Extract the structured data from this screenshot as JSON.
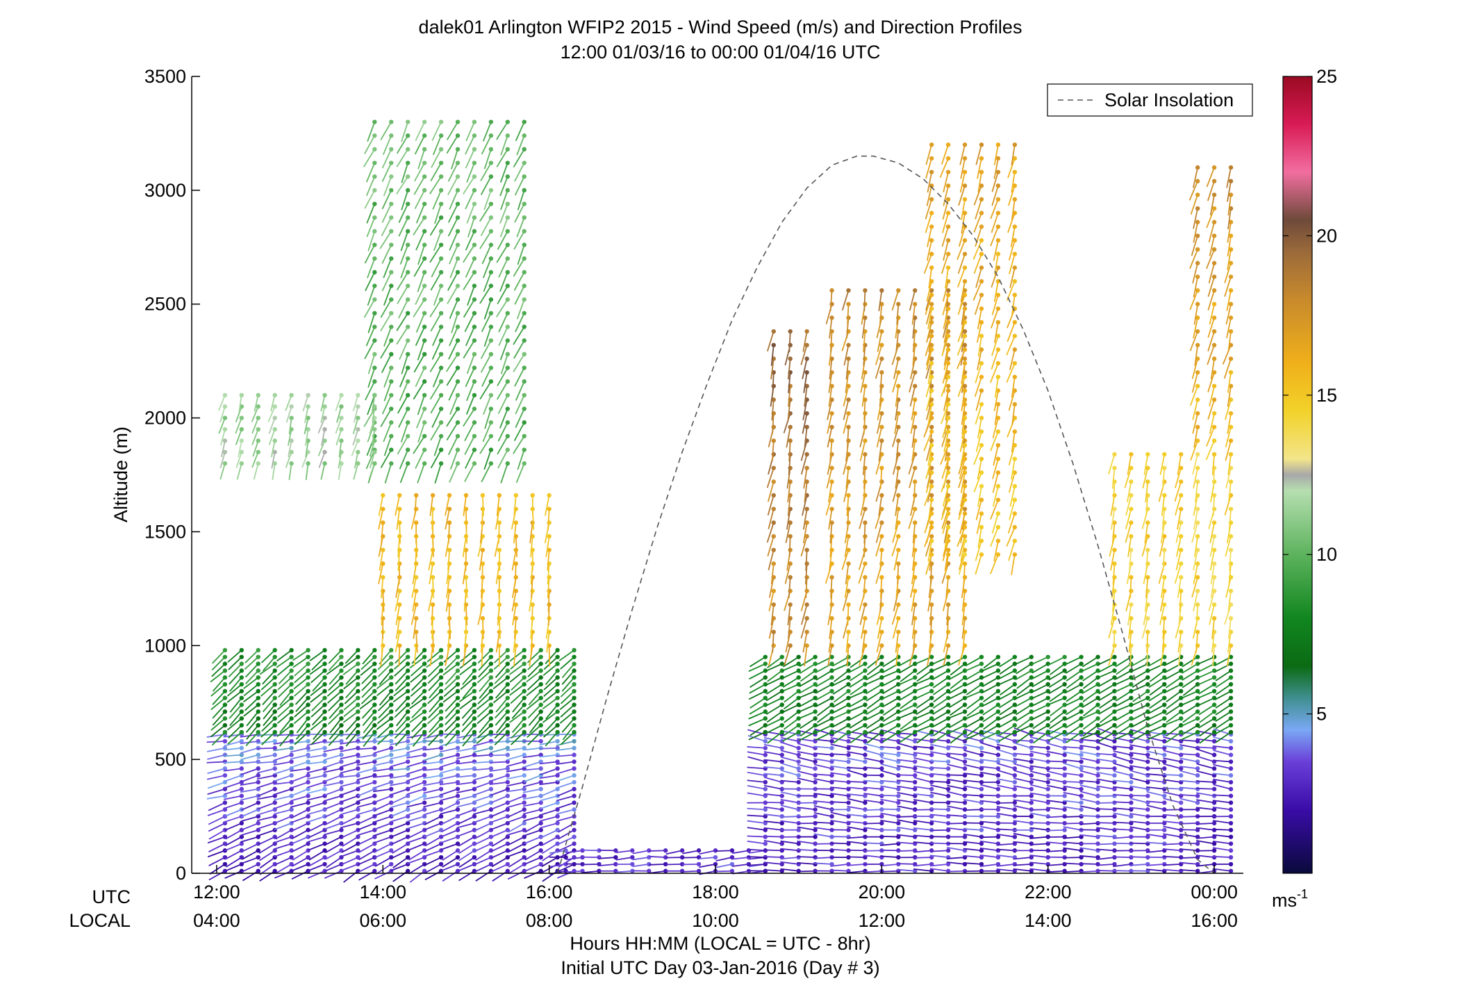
{
  "chart_data": {
    "type": "scatter",
    "title": "dalek01 Arlington WFIP2 2015 - Wind Speed (m/s) and Direction Profiles",
    "subtitle": "12:00 01/03/16 to 00:00 01/04/16  UTC",
    "ylabel": "Altitude (m)",
    "xlabel": "Hours HH:MM  (LOCAL = UTC - 8hr)",
    "xlabel2": "Initial UTC Day 03-Jan-2016 (Day # 3)",
    "axis_row_labels": [
      "UTC",
      "LOCAL"
    ],
    "xlim": [
      11.7,
      24.35
    ],
    "ylim": [
      0,
      3500
    ],
    "x_ticks": [
      12,
      14,
      16,
      18,
      20,
      22,
      24
    ],
    "x_tick_labels_utc": [
      "12:00",
      "14:00",
      "16:00",
      "18:00",
      "20:00",
      "22:00",
      "00:00"
    ],
    "x_tick_labels_local": [
      "04:00",
      "06:00",
      "08:00",
      "10:00",
      "12:00",
      "14:00",
      "16:00"
    ],
    "y_ticks": [
      0,
      500,
      1000,
      1500,
      2000,
      2500,
      3000,
      3500
    ],
    "y_tick_labels": [
      "0",
      "500",
      "1000",
      "1500",
      "2000",
      "2500",
      "3000",
      "3500"
    ],
    "legend": {
      "position": "top-right",
      "entries": [
        {
          "name": "Solar Insolation",
          "style": "dashed",
          "color": "#555555"
        }
      ]
    },
    "colorbar": {
      "range": [
        0,
        25
      ],
      "ticks": [
        5,
        10,
        15,
        20,
        25
      ],
      "tick_labels": [
        "5",
        "10",
        "15",
        "20",
        "25"
      ],
      "unit_label": "ms",
      "unit_superscript": "-1",
      "stops": [
        {
          "value": 0,
          "color": "#0a0a3c"
        },
        {
          "value": 2,
          "color": "#3a0ca8"
        },
        {
          "value": 3.5,
          "color": "#6a3fd8"
        },
        {
          "value": 4.5,
          "color": "#7aa8f5"
        },
        {
          "value": 5.5,
          "color": "#3f8f8f"
        },
        {
          "value": 6.5,
          "color": "#0b6b14"
        },
        {
          "value": 8,
          "color": "#11861f"
        },
        {
          "value": 10,
          "color": "#5db35d"
        },
        {
          "value": 12,
          "color": "#b6deb0"
        },
        {
          "value": 12.5,
          "color": "#a8a8a8"
        },
        {
          "value": 13,
          "color": "#f3e58a"
        },
        {
          "value": 14.5,
          "color": "#f2d22a"
        },
        {
          "value": 16,
          "color": "#f0b01a"
        },
        {
          "value": 18,
          "color": "#c88a2c"
        },
        {
          "value": 19.5,
          "color": "#9b6a3a"
        },
        {
          "value": 20.5,
          "color": "#6e4a3a"
        },
        {
          "value": 22,
          "color": "#f26ea0"
        },
        {
          "value": 23.5,
          "color": "#d81b55"
        },
        {
          "value": 25,
          "color": "#9a0a22"
        }
      ]
    },
    "solar_insolation_curve": {
      "x": [
        16.1,
        16.4,
        16.7,
        17.0,
        17.3,
        17.6,
        17.9,
        18.2,
        18.5,
        18.8,
        19.1,
        19.4,
        19.7,
        19.9,
        20.2,
        20.5,
        20.8,
        21.1,
        21.4,
        21.7,
        22.0,
        22.3,
        22.6,
        22.9,
        23.2,
        23.5,
        23.8,
        24.0
      ],
      "y": [
        0,
        380,
        780,
        1160,
        1520,
        1850,
        2150,
        2430,
        2660,
        2860,
        3010,
        3110,
        3150,
        3150,
        3120,
        3050,
        2940,
        2800,
        2620,
        2390,
        2120,
        1800,
        1440,
        1050,
        640,
        300,
        60,
        0
      ]
    },
    "profile_groups": [
      {
        "t0": 12.1,
        "t1": 16.3,
        "dt": 0.2,
        "z0": 10,
        "z1": 620,
        "dz": 30,
        "speed_base": 2.5,
        "speed_slope": 0.003,
        "dir_base": 240,
        "dir_slope": 0.04,
        "shaft": 0.22
      },
      {
        "t0": 12.1,
        "t1": 16.3,
        "dt": 0.2,
        "z0": 620,
        "z1": 1000,
        "dz": 30,
        "speed_base": 7.5,
        "speed_slope": 0.002,
        "dir_base": 225,
        "dir_slope": 0.01,
        "shaft": 0.22
      },
      {
        "t0": 14.0,
        "t1": 16.0,
        "dt": 0.2,
        "z0": 1000,
        "z1": 1700,
        "dz": 60,
        "speed_base": 15.5,
        "speed_slope": 0.0005,
        "dir_base": 185,
        "dir_slope": 0.0,
        "shaft": 0.25
      },
      {
        "t0": 13.9,
        "t1": 15.8,
        "dt": 0.2,
        "z0": 1800,
        "z1": 3300,
        "dz": 60,
        "speed_base": 9.5,
        "speed_slope": 0.0005,
        "dir_base": 205,
        "dir_slope": 0.0,
        "shaft": 0.25
      },
      {
        "t0": 12.1,
        "t1": 14.0,
        "dt": 0.2,
        "z0": 1800,
        "z1": 2100,
        "dz": 50,
        "speed_base": 11.5,
        "speed_slope": 0.0,
        "dir_base": 195,
        "dir_slope": 0.0,
        "shaft": 0.2
      },
      {
        "t0": 16.2,
        "t1": 18.6,
        "dt": 0.2,
        "z0": 10,
        "z1": 110,
        "dz": 30,
        "speed_base": 3.0,
        "speed_slope": 0.0,
        "dir_base": 265,
        "dir_slope": 0.0,
        "shaft": 0.2
      },
      {
        "t0": 18.6,
        "t1": 24.2,
        "dt": 0.2,
        "z0": 10,
        "z1": 620,
        "dz": 30,
        "speed_base": 2.8,
        "speed_slope": 0.001,
        "dir_base": 270,
        "dir_slope": 0.02,
        "shaft": 0.22
      },
      {
        "t0": 18.6,
        "t1": 24.2,
        "dt": 0.2,
        "z0": 620,
        "z1": 960,
        "dz": 30,
        "speed_base": 7.5,
        "speed_slope": 0.001,
        "dir_base": 240,
        "dir_slope": 0.0,
        "shaft": 0.22
      },
      {
        "t0": 18.7,
        "t1": 19.1,
        "dt": 0.2,
        "z0": 1000,
        "z1": 2400,
        "dz": 60,
        "speed_base": 17.5,
        "speed_slope": 0.0015,
        "dir_base": 190,
        "dir_slope": 0.0,
        "shaft": 0.25
      },
      {
        "t0": 19.4,
        "t1": 21.1,
        "dt": 0.2,
        "z0": 1000,
        "z1": 2600,
        "dz": 60,
        "speed_base": 16.5,
        "speed_slope": 0.001,
        "dir_base": 190,
        "dir_slope": 0.0,
        "shaft": 0.25
      },
      {
        "t0": 20.6,
        "t1": 21.6,
        "dt": 0.2,
        "z0": 1400,
        "z1": 3200,
        "dz": 60,
        "speed_base": 15.0,
        "speed_slope": 0.001,
        "dir_base": 195,
        "dir_slope": 0.0,
        "shaft": 0.25
      },
      {
        "t0": 22.8,
        "t1": 24.2,
        "dt": 0.2,
        "z0": 1000,
        "z1": 1850,
        "dz": 60,
        "speed_base": 14.5,
        "speed_slope": 0.0,
        "dir_base": 190,
        "dir_slope": 0.0,
        "shaft": 0.25
      },
      {
        "t0": 23.8,
        "t1": 24.2,
        "dt": 0.2,
        "z0": 1900,
        "z1": 3100,
        "dz": 60,
        "speed_base": 15.5,
        "speed_slope": 0.002,
        "dir_base": 195,
        "dir_slope": 0.0,
        "shaft": 0.25
      }
    ]
  }
}
